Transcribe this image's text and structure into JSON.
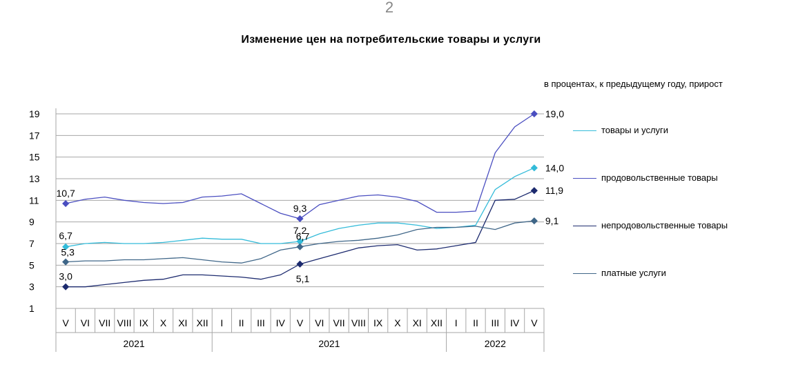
{
  "page_number": "2",
  "chart_data": {
    "type": "line",
    "title": "Изменение цен на потребительские товары и услуги",
    "subtitle": "в процентах, к предыдущему году, прирост",
    "xlabel": "",
    "ylabel": "",
    "ylim": [
      1,
      19
    ],
    "yticks": [
      1,
      3,
      5,
      7,
      9,
      11,
      13,
      15,
      17,
      19
    ],
    "grid": true,
    "legend": "right",
    "categories": [
      "V",
      "VI",
      "VII",
      "VIII",
      "IX",
      "X",
      "XI",
      "XII",
      "I",
      "II",
      "III",
      "IV",
      "V",
      "VI",
      "VII",
      "VIII",
      "IX",
      "X",
      "XI",
      "XII",
      "I",
      "II",
      "III",
      "IV",
      "V"
    ],
    "year_groups": [
      {
        "label": "2021",
        "start": 0,
        "end": 7
      },
      {
        "label": "2021",
        "start": 8,
        "end": 19
      },
      {
        "label": "2022",
        "start": 20,
        "end": 24
      }
    ],
    "series": [
      {
        "name": "товары и услуги",
        "color": "#33bbd9",
        "values": [
          6.7,
          7.0,
          7.1,
          7.0,
          7.0,
          7.1,
          7.3,
          7.5,
          7.4,
          7.4,
          7.0,
          7.0,
          7.2,
          7.9,
          8.4,
          8.7,
          8.9,
          8.9,
          8.7,
          8.4,
          8.5,
          8.7,
          12.0,
          13.2,
          14.0
        ],
        "labels": [
          {
            "index": 0,
            "text": "6,7"
          },
          {
            "index": 12,
            "text": "7,2"
          },
          {
            "index": 24,
            "text": "14,0"
          }
        ]
      },
      {
        "name": "продовольственные товары",
        "color": "#4a4ec0",
        "values": [
          10.7,
          11.1,
          11.3,
          11.0,
          10.8,
          10.7,
          10.8,
          11.3,
          11.4,
          11.6,
          10.7,
          9.8,
          9.3,
          10.6,
          11.0,
          11.4,
          11.5,
          11.3,
          10.9,
          9.9,
          9.9,
          10.0,
          15.4,
          17.8,
          19.0
        ],
        "labels": [
          {
            "index": 0,
            "text": "10,7"
          },
          {
            "index": 12,
            "text": "9,3"
          },
          {
            "index": 24,
            "text": "19,0"
          }
        ]
      },
      {
        "name": "непродовольственные товары",
        "color": "#1c2a6e",
        "values": [
          3.0,
          3.0,
          3.2,
          3.4,
          3.6,
          3.7,
          4.1,
          4.1,
          4.0,
          3.9,
          3.7,
          4.1,
          5.1,
          5.6,
          6.1,
          6.6,
          6.8,
          6.9,
          6.4,
          6.5,
          6.8,
          7.1,
          11.0,
          11.1,
          11.9
        ],
        "labels": [
          {
            "index": 0,
            "text": "3,0"
          },
          {
            "index": 12,
            "text": "5,1"
          },
          {
            "index": 24,
            "text": "11,9"
          }
        ]
      },
      {
        "name": "платные услуги",
        "color": "#3f6688",
        "values": [
          5.3,
          5.4,
          5.4,
          5.5,
          5.5,
          5.6,
          5.7,
          5.5,
          5.3,
          5.2,
          5.6,
          6.4,
          6.7,
          7.0,
          7.2,
          7.3,
          7.5,
          7.8,
          8.3,
          8.5,
          8.5,
          8.6,
          8.3,
          8.9,
          9.1
        ],
        "labels": [
          {
            "index": 0,
            "text": "5,3"
          },
          {
            "index": 12,
            "text": "6,7"
          },
          {
            "index": 24,
            "text": "9,1"
          }
        ]
      }
    ]
  }
}
